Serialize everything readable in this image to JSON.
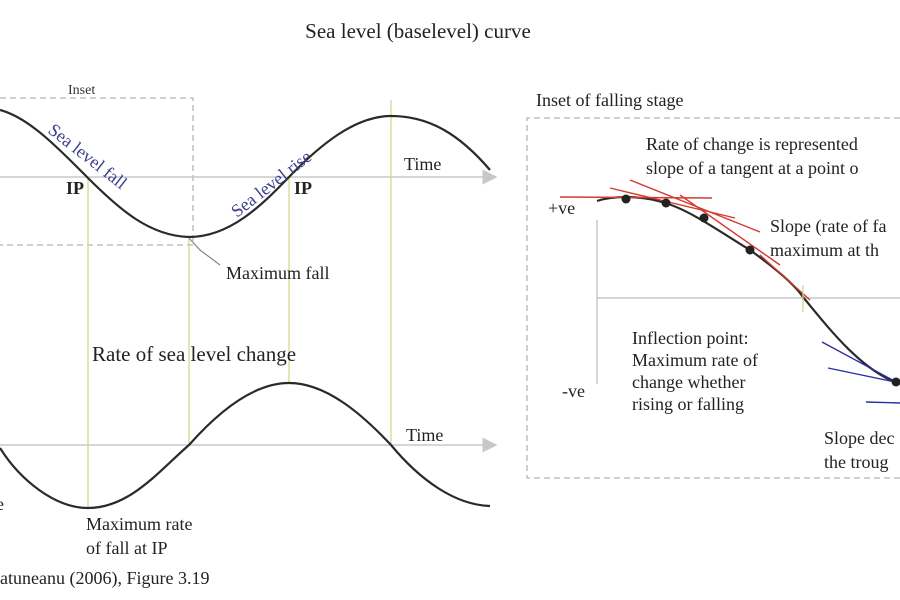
{
  "title": "Sea level (baselevel) curve",
  "left_panel": {
    "inset_label": "Inset",
    "sea_level_fall": "Sea level fall",
    "sea_level_rise": "Sea level rise",
    "ip_left": "IP",
    "ip_right": "IP",
    "time_top": "Time",
    "maximum_fall": "Maximum fall",
    "rate_title": "Rate of sea level change",
    "time_bottom": "Time",
    "edge_letter": "e",
    "max_rate_line1": "Maximum rate",
    "max_rate_line2": "of fall at IP",
    "citation": "atuneanu (2006), Figure 3.19"
  },
  "right_panel": {
    "inset_title": "Inset of falling stage",
    "rate_note_line1": "Rate of change is represented",
    "rate_note_line2": "slope of a tangent at a point o",
    "plus_ve": "+ve",
    "minus_ve": "-ve",
    "slope_note_line1": "Slope (rate of fa",
    "slope_note_line2": "maximum at th",
    "inflection_line1": "Inflection point:",
    "inflection_line2": "Maximum rate of",
    "inflection_line3": "change whether",
    "inflection_line4": "rising or falling",
    "slope_dec_line1": "Slope dec",
    "slope_dec_line2": "the troug"
  },
  "colors": {
    "curve": "#2a2a2a",
    "tangent_red": "#d43a2f",
    "tangent_blue": "#2b2fa6",
    "label_blue": "#3b3f8f",
    "ip_vertical": "#d9d58a"
  }
}
